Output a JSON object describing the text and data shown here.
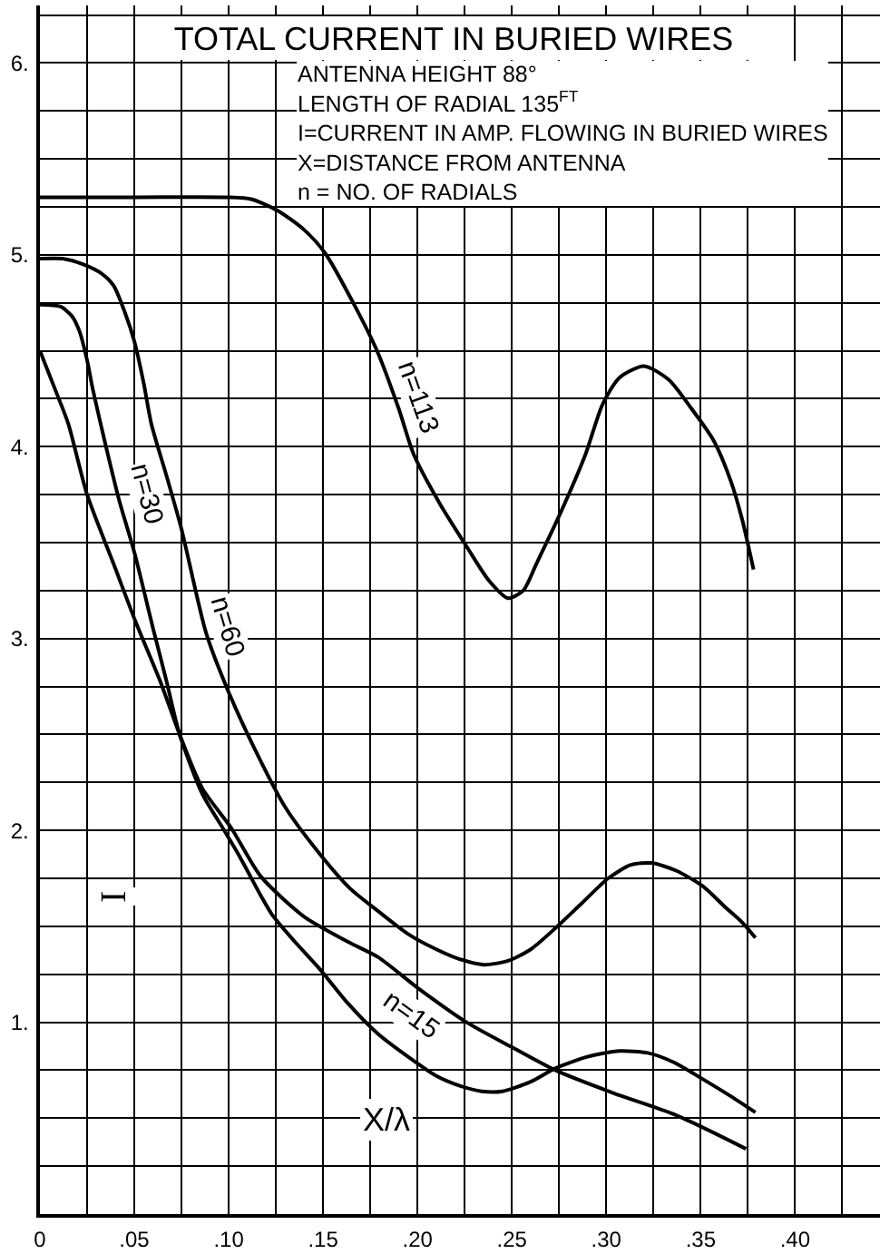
{
  "chart_data": {
    "type": "line",
    "title": "TOTAL CURRENT IN BURIED WIRES",
    "subtitle": "ANTENNA HEIGHT 88°\nLENGTH OF RADIAL 135$^{FT}$\nI=CURRENT IN AMP. FLOWING IN BURIED WIRES\nX=DISTANCE FROM ANTENNA\nn = NO. OF RADIALS",
    "xlabel": "X/λ",
    "ylabel": "I",
    "xlim": [
      0,
      0.445
    ],
    "ylim": [
      0,
      6.3
    ],
    "xticks": [
      0,
      {
        "value": 0.025,
        "label": null
      },
      {
        "value": 0.05,
        "label": ".05"
      },
      {
        "value": 0.075,
        "label": null
      },
      {
        "value": 0.1,
        "label": ".10"
      },
      {
        "value": 0.125,
        "label": null
      },
      {
        "value": 0.15,
        "label": ".15"
      },
      {
        "value": 0.175,
        "label": null
      },
      {
        "value": 0.2,
        "label": ".20"
      },
      {
        "value": 0.225,
        "label": null
      },
      {
        "value": 0.25,
        "label": ".25"
      },
      {
        "value": 0.275,
        "label": null
      },
      {
        "value": 0.3,
        "label": ".30"
      },
      {
        "value": 0.325,
        "label": null
      },
      {
        "value": 0.35,
        "label": ".35"
      },
      {
        "value": 0.375,
        "label": null
      },
      {
        "value": 0.4,
        "label": ".40"
      },
      {
        "value": 0.425,
        "label": null
      }
    ],
    "yticks": [
      {
        "value": 0.25,
        "label": null
      },
      {
        "value": 0.5,
        "label": null
      },
      {
        "value": 0.75,
        "label": null
      },
      {
        "value": 1,
        "label": "1."
      },
      {
        "value": 1.25,
        "label": null
      },
      {
        "value": 1.5,
        "label": null
      },
      {
        "value": 1.75,
        "label": null
      },
      {
        "value": 2,
        "label": "2."
      },
      {
        "value": 2.25,
        "label": null
      },
      {
        "value": 2.5,
        "label": null
      },
      {
        "value": 2.75,
        "label": null
      },
      {
        "value": 3,
        "label": "3."
      },
      {
        "value": 3.25,
        "label": null
      },
      {
        "value": 3.5,
        "label": null
      },
      {
        "value": 3.75,
        "label": null
      },
      {
        "value": 4,
        "label": "4."
      },
      {
        "value": 4.25,
        "label": null
      },
      {
        "value": 4.5,
        "label": null
      },
      {
        "value": 4.75,
        "label": null
      },
      {
        "value": 5,
        "label": "5."
      },
      {
        "value": 5.25,
        "label": null
      },
      {
        "value": 5.5,
        "label": null
      },
      {
        "value": 5.75,
        "label": null
      },
      {
        "value": 6,
        "label": "6."
      },
      {
        "value": 6.25,
        "label": null
      }
    ],
    "grid": true,
    "legend": false,
    "series": [
      {
        "name": "n=113",
        "color": "#000000",
        "x": [
          0,
          0.05,
          0.1,
          0.112,
          0.126,
          0.14,
          0.151,
          0.167,
          0.179,
          0.19,
          0.198,
          0.212,
          0.226,
          0.238,
          0.248,
          0.256,
          0.263,
          0.276,
          0.289,
          0.298,
          0.307,
          0.32,
          0.333,
          0.345,
          0.357,
          0.366,
          0.372,
          0.378
        ],
        "values": [
          5.3,
          5.3,
          5.3,
          5.29,
          5.23,
          5.13,
          5.01,
          4.73,
          4.49,
          4.2,
          3.96,
          3.7,
          3.48,
          3.3,
          3.21,
          3.25,
          3.39,
          3.66,
          3.96,
          4.22,
          4.36,
          4.42,
          4.35,
          4.2,
          4.03,
          3.82,
          3.62,
          3.36
        ]
      },
      {
        "name": "n=60",
        "color": "#000000",
        "x": [
          0,
          0.012,
          0.023,
          0.033,
          0.039,
          0.045,
          0.05,
          0.055,
          0.059,
          0.067,
          0.075,
          0.088,
          0.1,
          0.114,
          0.13,
          0.148,
          0.164,
          0.179,
          0.195,
          0.21,
          0.222,
          0.235,
          0.248,
          0.26,
          0.273,
          0.287,
          0.301,
          0.313,
          0.324,
          0.337,
          0.351,
          0.363,
          0.372,
          0.379
        ],
        "values": [
          4.98,
          4.98,
          4.95,
          4.9,
          4.84,
          4.7,
          4.55,
          4.33,
          4.12,
          3.85,
          3.57,
          3.03,
          2.72,
          2.42,
          2.12,
          1.88,
          1.7,
          1.58,
          1.46,
          1.38,
          1.33,
          1.3,
          1.32,
          1.38,
          1.49,
          1.62,
          1.75,
          1.82,
          1.83,
          1.79,
          1.71,
          1.6,
          1.52,
          1.44
        ]
      },
      {
        "name": "n=30",
        "color": "#000000",
        "x": [
          0,
          0.011,
          0.017,
          0.021,
          0.025,
          0.028,
          0.035,
          0.042,
          0.05,
          0.06,
          0.067,
          0.074,
          0.086,
          0.097,
          0.106,
          0.117,
          0.123,
          0.135,
          0.148,
          0.163,
          0.179,
          0.195,
          0.21,
          0.222,
          0.234,
          0.245,
          0.26,
          0.273,
          0.29,
          0.307,
          0.322,
          0.336,
          0.35,
          0.365,
          0.379
        ],
        "values": [
          4.74,
          4.73,
          4.68,
          4.6,
          4.45,
          4.3,
          4.0,
          3.72,
          3.45,
          3.05,
          2.78,
          2.5,
          2.19,
          2.01,
          1.86,
          1.66,
          1.56,
          1.42,
          1.28,
          1.1,
          0.94,
          0.82,
          0.72,
          0.67,
          0.64,
          0.64,
          0.69,
          0.76,
          0.82,
          0.85,
          0.84,
          0.79,
          0.71,
          0.62,
          0.53
        ]
      },
      {
        "name": "n=15",
        "color": "#000000",
        "x": [
          0,
          0.008,
          0.015,
          0.025,
          0.039,
          0.051,
          0.064,
          0.074,
          0.086,
          0.1015,
          0.117,
          0.14,
          0.163,
          0.179,
          0.2,
          0.226,
          0.25,
          0.273,
          0.304,
          0.336,
          0.374
        ],
        "values": [
          4.5,
          4.3,
          4.12,
          3.75,
          3.39,
          3.08,
          2.77,
          2.5,
          2.22,
          2.01,
          1.76,
          1.55,
          1.42,
          1.34,
          1.18,
          1.0,
          0.87,
          0.75,
          0.63,
          0.52,
          0.34
        ]
      }
    ]
  }
}
